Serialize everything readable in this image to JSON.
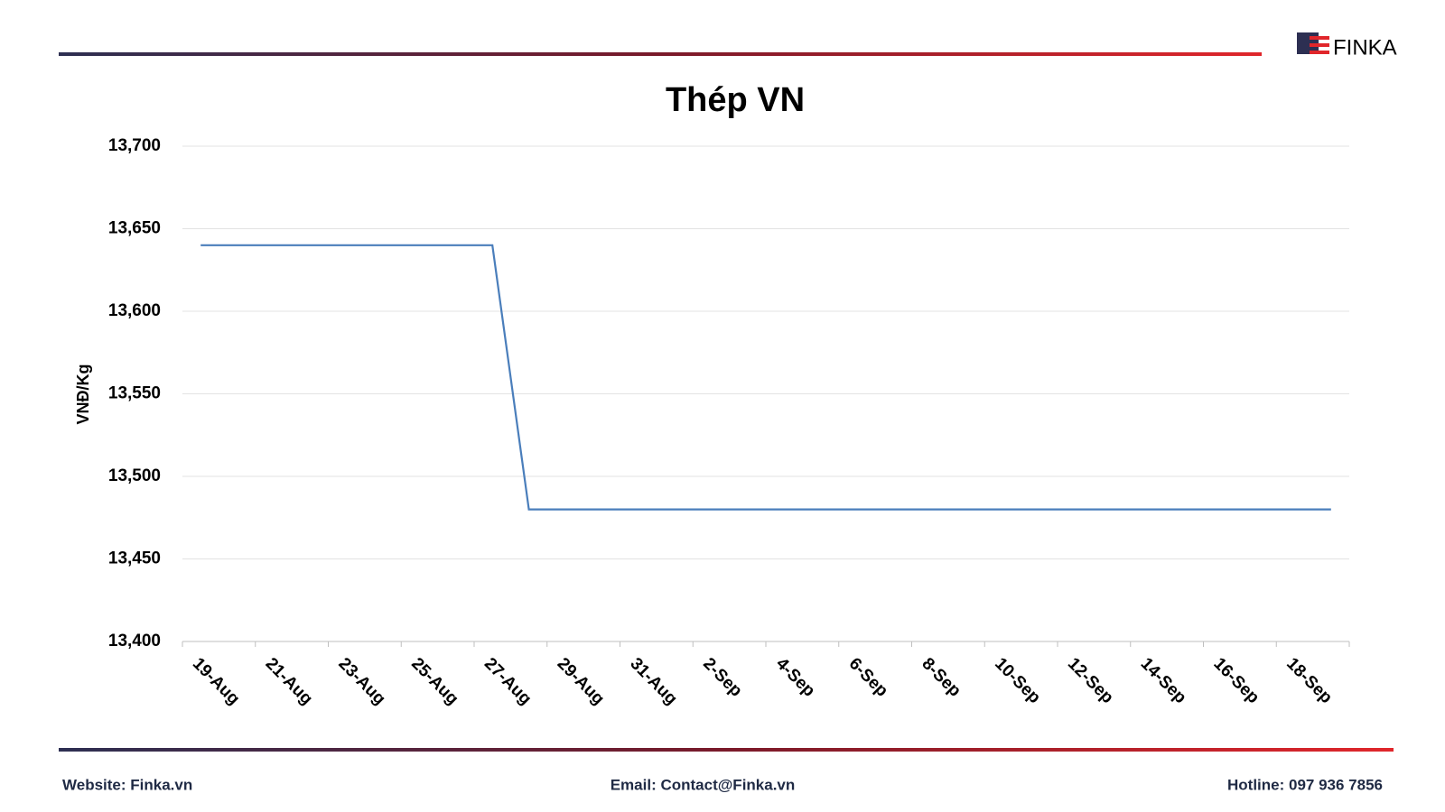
{
  "logo": "FINKA",
  "footer": {
    "website": "Website: Finka.vn",
    "email": "Email: Contact@Finka.vn",
    "hotline": "Hotline: 097 936 7856"
  },
  "chart_data": {
    "type": "line",
    "title": "Thép VN",
    "y_label": "VNĐ/Kg",
    "categories": [
      "19-Aug",
      null,
      "21-Aug",
      null,
      "23-Aug",
      null,
      "25-Aug",
      null,
      "27-Aug",
      null,
      "29-Aug",
      null,
      "31-Aug",
      null,
      "2-Sep",
      null,
      "4-Sep",
      null,
      "6-Sep",
      null,
      "8-Sep",
      null,
      "10-Sep",
      null,
      "12-Sep",
      null,
      "14-Sep",
      null,
      "16-Sep",
      null,
      "18-Sep",
      null
    ],
    "values": [
      13640,
      13640,
      13640,
      13640,
      13640,
      13640,
      13640,
      13640,
      13640,
      13480,
      13480,
      13480,
      13480,
      13480,
      13480,
      13480,
      13480,
      13480,
      13480,
      13480,
      13480,
      13480,
      13480,
      13480,
      13480,
      13480,
      13480,
      13480,
      13480,
      13480,
      13480,
      13480
    ],
    "color": "#4a7ebb",
    "ylim": [
      13400,
      13700
    ],
    "yticks": [
      {
        "value": 13400,
        "label": "13,400"
      },
      {
        "value": 13450,
        "label": "13,450"
      },
      {
        "value": 13500,
        "label": "13,500"
      },
      {
        "value": 13550,
        "label": "13,550"
      },
      {
        "value": 13600,
        "label": "13,600"
      },
      {
        "value": 13650,
        "label": "13,650"
      },
      {
        "value": 13700,
        "label": "13,700"
      }
    ],
    "grid": true
  }
}
